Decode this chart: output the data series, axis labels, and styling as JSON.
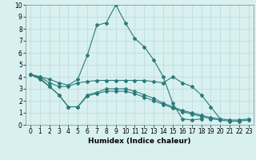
{
  "xlabel": "Humidex (Indice chaleur)",
  "bg_color": "#d8f0f0",
  "line_color": "#2a7a7a",
  "grid_color": "#b8d8d8",
  "xlim": [
    -0.5,
    23.5
  ],
  "ylim": [
    0,
    10
  ],
  "xticks": [
    0,
    1,
    2,
    3,
    4,
    5,
    6,
    7,
    8,
    9,
    10,
    11,
    12,
    13,
    14,
    15,
    16,
    17,
    18,
    19,
    20,
    21,
    22,
    23
  ],
  "yticks": [
    0,
    1,
    2,
    3,
    4,
    5,
    6,
    7,
    8,
    9,
    10
  ],
  "lines": [
    {
      "x": [
        0,
        1,
        2,
        3,
        4,
        5,
        6,
        7,
        8,
        9,
        10,
        11,
        12,
        13,
        14,
        15,
        16,
        17,
        18,
        19,
        20,
        21,
        22,
        23
      ],
      "y": [
        4.2,
        4.0,
        3.8,
        3.5,
        3.3,
        3.8,
        5.8,
        8.3,
        8.5,
        10.0,
        8.5,
        7.2,
        6.5,
        5.4,
        4.0,
        1.8,
        0.5,
        0.4,
        0.5,
        null,
        null,
        null,
        null,
        null
      ]
    },
    {
      "x": [
        0,
        1,
        2,
        3,
        4,
        5,
        6,
        7,
        8,
        9,
        10,
        11,
        12,
        13,
        14,
        15,
        16,
        17,
        18,
        19,
        20
      ],
      "y": [
        4.2,
        4.0,
        3.5,
        3.2,
        3.2,
        3.5,
        3.6,
        3.7,
        3.7,
        3.7,
        3.7,
        3.7,
        3.7,
        3.6,
        3.5,
        4.0,
        3.5,
        3.2,
        2.5,
        1.5,
        0.5
      ]
    },
    {
      "x": [
        0,
        1,
        2,
        3,
        4,
        5,
        6,
        7,
        8,
        9,
        10,
        11,
        12,
        13,
        14,
        15,
        16,
        17,
        18,
        19,
        20,
        21,
        22,
        23
      ],
      "y": [
        4.2,
        3.9,
        3.2,
        2.5,
        1.5,
        1.5,
        2.5,
        2.7,
        3.0,
        3.0,
        3.0,
        2.8,
        2.5,
        2.2,
        1.8,
        1.5,
        1.2,
        1.0,
        0.8,
        0.6,
        0.5,
        0.4,
        0.4,
        0.5
      ]
    },
    {
      "x": [
        0,
        1,
        2,
        3,
        4,
        5,
        6,
        7,
        8,
        9,
        10,
        11,
        12,
        13,
        14,
        15,
        16,
        17,
        18,
        19,
        20,
        21,
        22,
        23
      ],
      "y": [
        4.2,
        3.8,
        3.2,
        2.5,
        1.5,
        1.5,
        2.4,
        2.6,
        2.8,
        2.8,
        2.8,
        2.6,
        2.3,
        2.0,
        1.7,
        1.4,
        1.1,
        0.9,
        0.7,
        0.5,
        0.4,
        0.3,
        0.3,
        0.4
      ]
    }
  ],
  "marker": "D",
  "marker_size": 2.0,
  "line_width": 0.8,
  "tick_fontsize": 5.5,
  "xlabel_fontsize": 6.5
}
